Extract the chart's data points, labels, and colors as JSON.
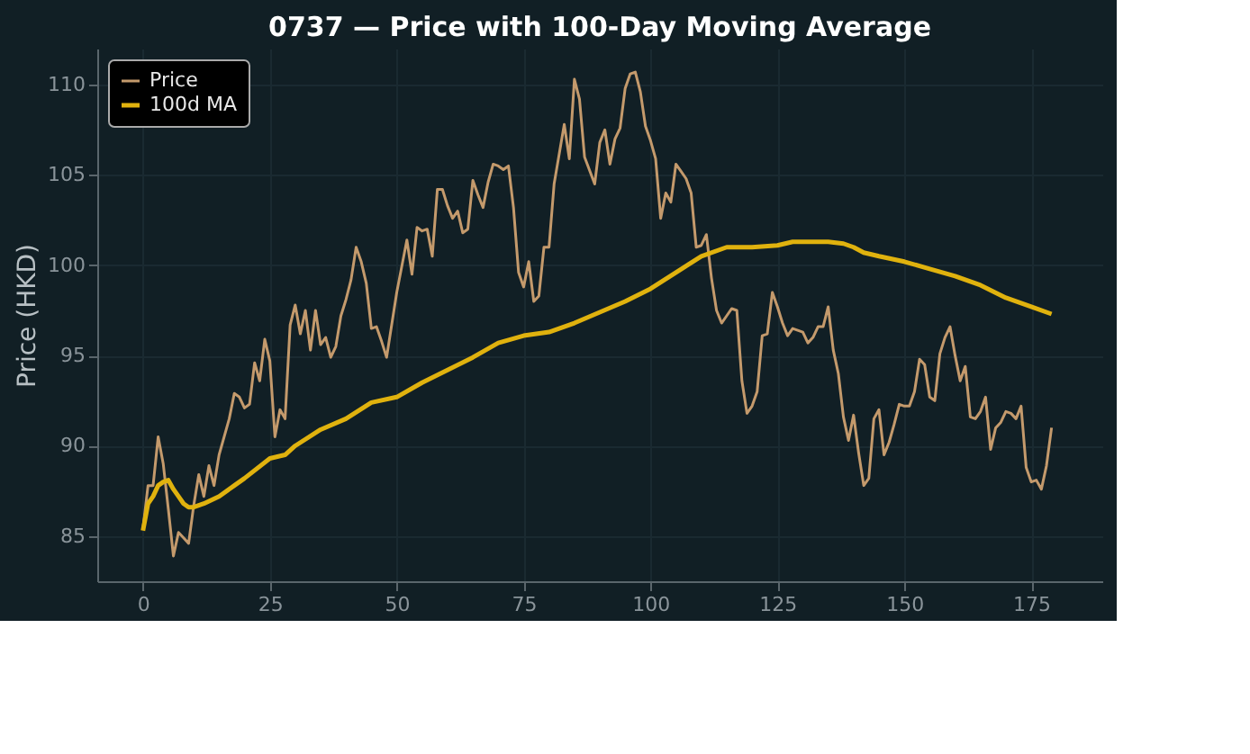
{
  "chart_data": {
    "type": "line",
    "title": "0737 — Price with 100-Day Moving Average",
    "ylabel": "Price (HKD)",
    "xlim": [
      -9,
      189
    ],
    "ylim": [
      82.5,
      112
    ],
    "xticks": [
      0,
      25,
      50,
      75,
      100,
      125,
      150,
      175
    ],
    "yticks": [
      85,
      90,
      95,
      100,
      105,
      110
    ],
    "grid": true,
    "legend": "top left",
    "line_style": "solid",
    "marker": "none",
    "series": [
      {
        "name": "Price",
        "color": "#c49a6c",
        "x": [
          0,
          1,
          2,
          3,
          4,
          5,
          6,
          7,
          8,
          9,
          10,
          11,
          12,
          13,
          14,
          15,
          17,
          18,
          19,
          20,
          21,
          22,
          23,
          24,
          25,
          26,
          27,
          28,
          29,
          30,
          31,
          32,
          33,
          34,
          35,
          36,
          37,
          38,
          39,
          40,
          41,
          42,
          43,
          44,
          45,
          46,
          47,
          48,
          50,
          52,
          53,
          54,
          55,
          56,
          57,
          58,
          59,
          60,
          61,
          62,
          63,
          64,
          65,
          66,
          67,
          68,
          69,
          70,
          71,
          72,
          73,
          74,
          75,
          76,
          77,
          78,
          79,
          80,
          81,
          83,
          84,
          85,
          86,
          87,
          89,
          90,
          91,
          92,
          93,
          94,
          95,
          96,
          97,
          98,
          99,
          100,
          101,
          102,
          103,
          104,
          105,
          106,
          107,
          108,
          109,
          110,
          111,
          112,
          113,
          114,
          115,
          116,
          117,
          118,
          119,
          120,
          121,
          122,
          123,
          124,
          125,
          126,
          127,
          128,
          129,
          130,
          131,
          132,
          133,
          134,
          135,
          136,
          137,
          138,
          139,
          140,
          141,
          142,
          143,
          144,
          145,
          146,
          147,
          148,
          149,
          150,
          151,
          152,
          153,
          154,
          155,
          156,
          157,
          158,
          159,
          160,
          161,
          162,
          163,
          164,
          165,
          166,
          167,
          168,
          169,
          170,
          171,
          172,
          173,
          174,
          175,
          176,
          177,
          178,
          179
        ],
        "values": [
          85.4,
          87.8,
          87.8,
          90.5,
          89,
          86.5,
          83.9,
          85.2,
          84.9,
          84.6,
          86.7,
          88.4,
          87.2,
          88.9,
          87.8,
          89.5,
          91.5,
          92.9,
          92.7,
          92.1,
          92.3,
          94.6,
          93.6,
          95.9,
          94.7,
          90.5,
          92.0,
          91.5,
          96.7,
          97.8,
          96.2,
          97.5,
          95.3,
          97.5,
          95.6,
          96.0,
          94.9,
          95.5,
          97.2,
          98.1,
          99.2,
          101.0,
          100.2,
          99.0,
          96.5,
          96.6,
          95.8,
          94.9,
          98.5,
          101.4,
          99.5,
          102.1,
          101.9,
          102.0,
          100.5,
          104.2,
          104.2,
          103.3,
          102.6,
          103.0,
          101.8,
          102.0,
          104.7,
          103.9,
          103.2,
          104.6,
          105.6,
          105.5,
          105.3,
          105.5,
          103.2,
          99.6,
          98.8,
          100.2,
          98.0,
          98.3,
          101.0,
          101.0,
          104.5,
          107.8,
          105.9,
          110.3,
          109.2,
          106.0,
          104.5,
          106.8,
          107.5,
          105.6,
          107.0,
          107.6,
          109.8,
          110.6,
          110.7,
          109.6,
          107.7,
          106.9,
          105.9,
          102.6,
          104.0,
          103.5,
          105.6,
          105.2,
          104.8,
          104.0,
          101.0,
          101.1,
          101.7,
          99.3,
          97.5,
          96.8,
          97.2,
          97.6,
          97.5,
          93.6,
          91.8,
          92.2,
          93.0,
          96.1,
          96.2,
          98.5,
          97.7,
          96.8,
          96.1,
          96.5,
          96.4,
          96.3,
          95.7,
          96.0,
          96.6,
          96.6,
          97.7,
          95.3,
          94.0,
          91.6,
          90.3,
          91.7,
          89.6,
          87.8,
          88.2,
          91.5,
          92.0,
          89.5,
          90.2,
          91.2,
          92.3,
          92.2,
          92.2,
          93.0,
          94.8,
          94.5,
          92.7,
          92.5,
          95.1,
          96.0,
          96.6,
          95.0,
          93.6,
          94.4,
          91.6,
          91.5,
          91.9,
          92.7,
          89.8,
          91.0,
          91.3,
          91.9,
          91.8,
          91.5,
          92.2,
          88.8,
          88.0,
          88.1,
          87.6,
          88.9,
          91.0
        ]
      },
      {
        "name": "100d MA",
        "color": "#e0b20e",
        "x": [
          0,
          1,
          2,
          3,
          4,
          5,
          6,
          7,
          8,
          9,
          10,
          12,
          15,
          18,
          20,
          25,
          28,
          30,
          35,
          40,
          45,
          50,
          55,
          60,
          65,
          70,
          75,
          80,
          85,
          90,
          95,
          100,
          105,
          110,
          115,
          120,
          125,
          128,
          135,
          138,
          140,
          142,
          145,
          150,
          155,
          160,
          165,
          170,
          175,
          179
        ],
        "values": [
          85.3,
          86.8,
          87.2,
          87.8,
          88.0,
          88.1,
          87.6,
          87.2,
          86.8,
          86.6,
          86.6,
          86.8,
          87.2,
          87.8,
          88.2,
          89.3,
          89.5,
          90.0,
          90.9,
          91.5,
          92.4,
          92.7,
          93.5,
          94.2,
          94.9,
          95.7,
          96.1,
          96.3,
          96.8,
          97.4,
          98.0,
          98.7,
          99.6,
          100.5,
          101.0,
          101.0,
          101.1,
          101.3,
          101.3,
          101.2,
          101.0,
          100.7,
          100.5,
          100.2,
          99.8,
          99.4,
          98.9,
          98.2,
          97.7,
          97.3
        ]
      }
    ]
  }
}
